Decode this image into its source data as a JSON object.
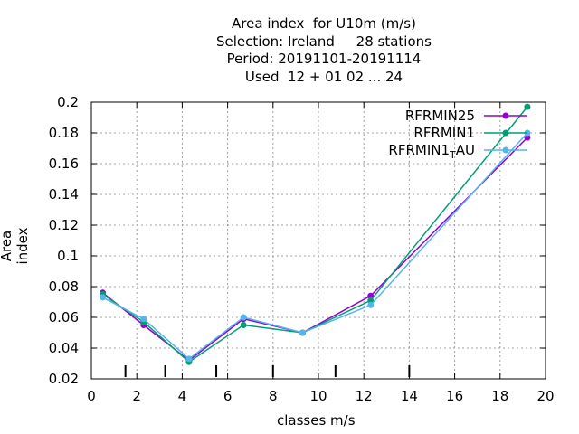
{
  "chart_data": {
    "type": "line",
    "title_lines": [
      "Area index  for U10m (m/s)",
      "Selection: Ireland     28 stations",
      "Period: 20191101-20191114",
      "Used  12 + 01 02 ... 24"
    ],
    "xlabel": "classes m/s",
    "ylabel": "Area index",
    "xlim": [
      0,
      20
    ],
    "ylim": [
      0.02,
      0.2
    ],
    "xticks": [
      "0",
      "2",
      "4",
      "6",
      "8",
      "10",
      "12",
      "14",
      "16",
      "18",
      "20"
    ],
    "yticks": [
      "0.02",
      "0.04",
      "0.06",
      "0.08",
      "0.1",
      "0.12",
      "0.14",
      "0.16",
      "0.18",
      "0.2"
    ],
    "grid": true,
    "legend_position": "top-right",
    "class_boundaries": [
      1.5,
      3.25,
      5.5,
      8.0,
      10.75,
      14.0
    ],
    "x": [
      0.5,
      2.3,
      4.3,
      6.7,
      9.3,
      12.3,
      19.2
    ],
    "series": [
      {
        "name": "RFRMIN25",
        "color": "#9400d3",
        "values": [
          0.076,
          0.055,
          0.032,
          0.059,
          0.05,
          0.074,
          0.177
        ]
      },
      {
        "name": "RFRMIN1",
        "color": "#009e73",
        "values": [
          0.075,
          0.057,
          0.031,
          0.055,
          0.05,
          0.071,
          0.197
        ]
      },
      {
        "name": "RFRMIN1_TAU",
        "legend_main": "RFRMIN1",
        "legend_sub": "T",
        "legend_tail": "AU",
        "color": "#56b4e9",
        "values": [
          0.073,
          0.059,
          0.033,
          0.06,
          0.05,
          0.068,
          0.18
        ]
      }
    ]
  }
}
